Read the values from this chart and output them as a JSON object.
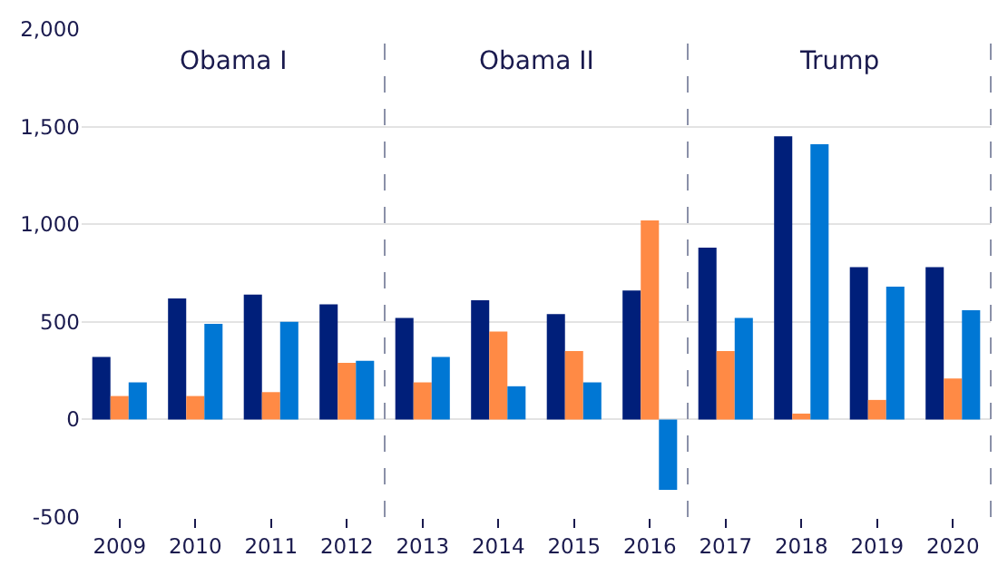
{
  "chart_data": {
    "type": "bar",
    "categories": [
      "2009",
      "2010",
      "2011",
      "2012",
      "2013",
      "2014",
      "2015",
      "2016",
      "2017",
      "2018",
      "2019",
      "2020"
    ],
    "series": [
      {
        "color": "#001f7a",
        "values": [
          320,
          620,
          640,
          590,
          520,
          610,
          540,
          660,
          880,
          1450,
          780,
          780
        ]
      },
      {
        "color": "#ff8a45",
        "values": [
          120,
          120,
          140,
          290,
          190,
          450,
          350,
          1020,
          350,
          30,
          100,
          210
        ]
      },
      {
        "color": "#0077d4",
        "values": [
          190,
          490,
          500,
          300,
          320,
          170,
          190,
          -360,
          520,
          1410,
          680,
          560
        ]
      }
    ],
    "ylim": [
      -500,
      2000
    ],
    "yticks": [
      {
        "value": -500,
        "label": "-500"
      },
      0,
      500,
      {
        "value": 1000,
        "label": "1,000"
      },
      {
        "value": 1500,
        "label": "1,500"
      },
      {
        "value": 2000,
        "label": "2,000"
      }
    ],
    "annotations": [
      "Obama I",
      "Obama II",
      "Trump"
    ],
    "grid": "y"
  }
}
